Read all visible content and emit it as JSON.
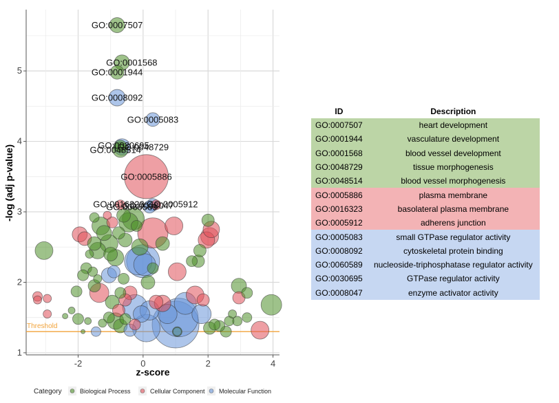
{
  "colors": {
    "Biological Process": "#4e8f2a",
    "Cellular Component": "#e0505a",
    "Molecular Function": "#6a96d8",
    "threshold": "#f2a33a",
    "row_bp": "#bcd5a6",
    "row_cc": "#f3b3b5",
    "row_mf": "#c6d7f2"
  },
  "chart_data": {
    "type": "scatter",
    "xlabel": "z-score",
    "ylabel": "-log (adj p-value)",
    "xlim": [
      -3.6,
      4.2
    ],
    "ylim": [
      0.97,
      5.87
    ],
    "xticks": [
      -2,
      0,
      2,
      4
    ],
    "yticks": [
      1,
      2,
      3,
      4,
      5
    ],
    "grid": true,
    "threshold": {
      "y": 1.3,
      "label": "Threshold"
    },
    "legend": {
      "title": "Category",
      "position": "bottom",
      "entries": [
        "Biological Process",
        "Cellular Component",
        "Molecular Function"
      ]
    },
    "labeled_points": [
      {
        "id": "GO:0007507",
        "x": -0.8,
        "y": 5.65,
        "r": 11,
        "category": "Biological Process"
      },
      {
        "id": "GO:0001568",
        "x": -0.65,
        "y": 5.12,
        "r": 11,
        "category": "Biological Process"
      },
      {
        "id": "GO:0001944",
        "x": -0.8,
        "y": 4.98,
        "r": 10,
        "category": "Biological Process"
      },
      {
        "id": "GO:0008092",
        "x": -0.8,
        "y": 4.62,
        "r": 12,
        "category": "Molecular Function"
      },
      {
        "id": "GO:0005083",
        "x": 0.3,
        "y": 4.31,
        "r": 10,
        "category": "Molecular Function"
      },
      {
        "id": "GO:0030695",
        "x": -0.65,
        "y": 3.92,
        "r": 12,
        "category": "Molecular Function"
      },
      {
        "id": "GO:0048729",
        "x": -0.7,
        "y": 3.93,
        "r": 9,
        "category": "Biological Process"
      },
      {
        "id": "GO:0048514",
        "x": -0.7,
        "y": 3.88,
        "r": 11,
        "category": "Biological Process"
      },
      {
        "id": "GO:0005886",
        "x": 0.1,
        "y": 3.5,
        "r": 32,
        "category": "Cellular Component"
      },
      {
        "id": "GO:0016323",
        "x": -0.7,
        "y": 3.1,
        "r": 7,
        "category": "Cellular Component"
      },
      {
        "id": "GO:0060589",
        "x": 0.3,
        "y": 3.1,
        "r": 9,
        "category": "Molecular Function"
      },
      {
        "id": "GO:0005912",
        "x": 0.4,
        "y": 3.1,
        "r": 7,
        "category": "Cellular Component"
      },
      {
        "id": "GO:0008047",
        "x": 0.2,
        "y": 3.07,
        "r": 9,
        "category": "Molecular Function"
      }
    ],
    "label_layout": [
      {
        "text": "GO:0007507",
        "x": -0.8,
        "y": 5.65
      },
      {
        "text": "GO:0001568",
        "x": -0.35,
        "y": 5.12
      },
      {
        "text": "GO:0001944",
        "x": -0.8,
        "y": 4.98
      },
      {
        "text": "GO:0008092",
        "x": -0.8,
        "y": 4.62
      },
      {
        "text": "GO:0005083",
        "x": 0.3,
        "y": 4.31
      },
      {
        "text": "GO:0030695",
        "x": -0.6,
        "y": 3.94
      },
      {
        "text": "GO:0048729",
        "x": 0.0,
        "y": 3.92
      },
      {
        "text": "GO:0048514",
        "x": -0.85,
        "y": 3.88
      },
      {
        "text": "GO:0005886",
        "x": 0.1,
        "y": 3.5
      },
      {
        "text": "GO:0016323",
        "x": -0.75,
        "y": 3.11
      },
      {
        "text": "GO:0060589",
        "x": -0.35,
        "y": 3.07
      },
      {
        "text": "GO:0005912",
        "x": 0.9,
        "y": 3.11
      },
      {
        "text": "GO:0008047",
        "x": 0.15,
        "y": 3.09
      }
    ],
    "points": [
      {
        "x": -3.05,
        "y": 2.45,
        "r": 13,
        "category": "Biological Process"
      },
      {
        "x": -3.25,
        "y": 1.8,
        "r": 7,
        "category": "Cellular Component"
      },
      {
        "x": -3.25,
        "y": 1.75,
        "r": 6,
        "category": "Cellular Component"
      },
      {
        "x": -2.95,
        "y": 1.77,
        "r": 6,
        "category": "Cellular Component"
      },
      {
        "x": -2.95,
        "y": 1.55,
        "r": 6,
        "category": "Cellular Component"
      },
      {
        "x": -2.4,
        "y": 1.52,
        "r": 4,
        "category": "Biological Process"
      },
      {
        "x": -2.0,
        "y": 1.48,
        "r": 8,
        "category": "Biological Process"
      },
      {
        "x": -2.05,
        "y": 1.87,
        "r": 8,
        "category": "Biological Process"
      },
      {
        "x": -1.95,
        "y": 2.68,
        "r": 11,
        "category": "Cellular Component"
      },
      {
        "x": -1.8,
        "y": 2.62,
        "r": 10,
        "category": "Cellular Component"
      },
      {
        "x": -1.85,
        "y": 1.3,
        "r": 3,
        "category": "Biological Process"
      },
      {
        "x": -1.65,
        "y": 2.4,
        "r": 6,
        "category": "Biological Process"
      },
      {
        "x": -1.75,
        "y": 2.2,
        "r": 8,
        "category": "Biological Process"
      },
      {
        "x": -1.85,
        "y": 2.1,
        "r": 8,
        "category": "Biological Process"
      },
      {
        "x": -1.55,
        "y": 2.15,
        "r": 7,
        "category": "Biological Process"
      },
      {
        "x": -1.5,
        "y": 1.95,
        "r": 9,
        "category": "Biological Process"
      },
      {
        "x": -1.4,
        "y": 2.05,
        "r": 6,
        "category": "Biological Process"
      },
      {
        "x": -1.35,
        "y": 1.85,
        "r": 14,
        "category": "Cellular Component"
      },
      {
        "x": -1.5,
        "y": 2.55,
        "r": 10,
        "category": "Biological Process"
      },
      {
        "x": -1.4,
        "y": 2.45,
        "r": 12,
        "category": "Biological Process"
      },
      {
        "x": -1.3,
        "y": 2.8,
        "r": 13,
        "category": "Biological Process"
      },
      {
        "x": -1.2,
        "y": 2.7,
        "r": 11,
        "category": "Biological Process"
      },
      {
        "x": -1.05,
        "y": 2.55,
        "r": 13,
        "category": "Biological Process"
      },
      {
        "x": -1.0,
        "y": 2.4,
        "r": 10,
        "category": "Biological Process"
      },
      {
        "x": -0.85,
        "y": 2.35,
        "r": 12,
        "category": "Biological Process"
      },
      {
        "x": -0.9,
        "y": 2.15,
        "r": 9,
        "category": "Molecular Function"
      },
      {
        "x": -1.05,
        "y": 2.1,
        "r": 11,
        "category": "Molecular Function"
      },
      {
        "x": -0.6,
        "y": 2.05,
        "r": 8,
        "category": "Biological Process"
      },
      {
        "x": -0.75,
        "y": 2.7,
        "r": 9,
        "category": "Biological Process"
      },
      {
        "x": -0.55,
        "y": 2.6,
        "r": 10,
        "category": "Biological Process"
      },
      {
        "x": -0.45,
        "y": 2.85,
        "r": 14,
        "category": "Biological Process"
      },
      {
        "x": -0.3,
        "y": 2.9,
        "r": 16,
        "category": "Biological Process"
      },
      {
        "x": -0.6,
        "y": 2.95,
        "r": 10,
        "category": "Biological Process"
      },
      {
        "x": -0.95,
        "y": 2.85,
        "r": 8,
        "category": "Cellular Component"
      },
      {
        "x": -1.5,
        "y": 2.92,
        "r": 7,
        "category": "Biological Process"
      },
      {
        "x": -1.1,
        "y": 2.95,
        "r": 6,
        "category": "Cellular Component"
      },
      {
        "x": -0.2,
        "y": 2.8,
        "r": 8,
        "category": "Biological Process"
      },
      {
        "x": 0.3,
        "y": 2.7,
        "r": 22,
        "category": "Cellular Component"
      },
      {
        "x": -0.1,
        "y": 2.5,
        "r": 12,
        "category": "Biological Process"
      },
      {
        "x": 0.6,
        "y": 2.55,
        "r": 10,
        "category": "Biological Process"
      },
      {
        "x": 0.3,
        "y": 2.2,
        "r": 8,
        "category": "Biological Process"
      },
      {
        "x": 0.15,
        "y": 2.0,
        "r": 10,
        "category": "Biological Process"
      },
      {
        "x": 0.0,
        "y": 2.3,
        "r": 24,
        "category": "Molecular Function"
      },
      {
        "x": -0.15,
        "y": 2.3,
        "r": 20,
        "category": "Molecular Function"
      },
      {
        "x": 0.05,
        "y": 2.25,
        "r": 16,
        "category": "Molecular Function"
      },
      {
        "x": 0.95,
        "y": 2.8,
        "r": 13,
        "category": "Cellular Component"
      },
      {
        "x": 1.05,
        "y": 2.15,
        "r": 13,
        "category": "Cellular Component"
      },
      {
        "x": 1.5,
        "y": 2.3,
        "r": 8,
        "category": "Biological Process"
      },
      {
        "x": 1.7,
        "y": 2.3,
        "r": 9,
        "category": "Biological Process"
      },
      {
        "x": 1.75,
        "y": 2.45,
        "r": 9,
        "category": "Biological Process"
      },
      {
        "x": 1.95,
        "y": 2.6,
        "r": 12,
        "category": "Cellular Component"
      },
      {
        "x": 2.05,
        "y": 2.65,
        "r": 13,
        "category": "Cellular Component"
      },
      {
        "x": 2.1,
        "y": 2.75,
        "r": 12,
        "category": "Cellular Component"
      },
      {
        "x": 2.0,
        "y": 2.88,
        "r": 9,
        "category": "Biological Process"
      },
      {
        "x": 2.95,
        "y": 1.95,
        "r": 11,
        "category": "Biological Process"
      },
      {
        "x": 3.2,
        "y": 1.85,
        "r": 8,
        "category": "Biological Process"
      },
      {
        "x": 2.95,
        "y": 1.78,
        "r": 9,
        "category": "Cellular Component"
      },
      {
        "x": 3.95,
        "y": 1.68,
        "r": 15,
        "category": "Biological Process"
      },
      {
        "x": 3.6,
        "y": 1.32,
        "r": 13,
        "category": "Cellular Component"
      },
      {
        "x": 3.2,
        "y": 1.5,
        "r": 7,
        "category": "Biological Process"
      },
      {
        "x": 2.9,
        "y": 1.45,
        "r": 7,
        "category": "Biological Process"
      },
      {
        "x": 2.75,
        "y": 1.55,
        "r": 6,
        "category": "Biological Process"
      },
      {
        "x": 2.65,
        "y": 1.45,
        "r": 7,
        "category": "Biological Process"
      },
      {
        "x": 2.55,
        "y": 1.3,
        "r": 8,
        "category": "Biological Process"
      },
      {
        "x": 2.35,
        "y": 1.38,
        "r": 8,
        "category": "Biological Process"
      },
      {
        "x": 2.2,
        "y": 1.4,
        "r": 8,
        "category": "Biological Process"
      },
      {
        "x": 2.05,
        "y": 1.35,
        "r": 9,
        "category": "Biological Process"
      },
      {
        "x": 1.8,
        "y": 1.55,
        "r": 14,
        "category": "Molecular Function"
      },
      {
        "x": 1.85,
        "y": 1.75,
        "r": 9,
        "category": "Cellular Component"
      },
      {
        "x": 1.6,
        "y": 1.82,
        "r": 13,
        "category": "Cellular Component"
      },
      {
        "x": 1.3,
        "y": 1.7,
        "r": 16,
        "category": "Molecular Function"
      },
      {
        "x": 1.1,
        "y": 1.5,
        "r": 28,
        "category": "Molecular Function"
      },
      {
        "x": 1.0,
        "y": 1.4,
        "r": 34,
        "category": "Molecular Function"
      },
      {
        "x": 1.05,
        "y": 1.3,
        "r": 7,
        "category": "Biological Process"
      },
      {
        "x": 0.75,
        "y": 1.55,
        "r": 14,
        "category": "Molecular Function"
      },
      {
        "x": 0.6,
        "y": 1.7,
        "r": 12,
        "category": "Cellular Component"
      },
      {
        "x": 0.4,
        "y": 1.72,
        "r": 10,
        "category": "Cellular Component"
      },
      {
        "x": 0.2,
        "y": 1.6,
        "r": 14,
        "category": "Molecular Function"
      },
      {
        "x": 0.1,
        "y": 1.35,
        "r": 20,
        "category": "Molecular Function"
      },
      {
        "x": -0.05,
        "y": 1.55,
        "r": 12,
        "category": "Molecular Function"
      },
      {
        "x": -0.25,
        "y": 1.65,
        "r": 18,
        "category": "Molecular Function"
      },
      {
        "x": -0.4,
        "y": 1.85,
        "r": 10,
        "category": "Cellular Component"
      },
      {
        "x": -0.55,
        "y": 1.75,
        "r": 9,
        "category": "Cellular Component"
      },
      {
        "x": -0.7,
        "y": 1.85,
        "r": 8,
        "category": "Biological Process"
      },
      {
        "x": -0.75,
        "y": 1.6,
        "r": 9,
        "category": "Cellular Component"
      },
      {
        "x": -0.95,
        "y": 1.72,
        "r": 10,
        "category": "Biological Process"
      },
      {
        "x": -1.05,
        "y": 1.5,
        "r": 8,
        "category": "Biological Process"
      },
      {
        "x": -0.85,
        "y": 1.45,
        "r": 12,
        "category": "Biological Process"
      },
      {
        "x": -0.7,
        "y": 1.38,
        "r": 10,
        "category": "Biological Process"
      },
      {
        "x": -0.55,
        "y": 1.48,
        "r": 8,
        "category": "Biological Process"
      },
      {
        "x": -0.4,
        "y": 1.32,
        "r": 9,
        "category": "Molecular Function"
      },
      {
        "x": -0.25,
        "y": 1.4,
        "r": 8,
        "category": "Cellular Component"
      },
      {
        "x": -1.45,
        "y": 1.3,
        "r": 7,
        "category": "Molecular Function"
      },
      {
        "x": -1.25,
        "y": 1.42,
        "r": 6,
        "category": "Biological Process"
      },
      {
        "x": -1.7,
        "y": 1.45,
        "r": 5,
        "category": "Biological Process"
      },
      {
        "x": -2.2,
        "y": 1.6,
        "r": 5,
        "category": "Biological Process"
      },
      {
        "x": 1.05,
        "y": 1.3,
        "r": 6,
        "category": "Molecular Function"
      }
    ]
  },
  "table": {
    "headers": [
      "ID",
      "Description"
    ],
    "rows": [
      {
        "id": "GO:0007507",
        "desc": "heart development",
        "cat": "bp"
      },
      {
        "id": "GO:0001944",
        "desc": "vasculature development",
        "cat": "bp"
      },
      {
        "id": "GO:0001568",
        "desc": "blood vessel development",
        "cat": "bp"
      },
      {
        "id": "GO:0048729",
        "desc": "tissue morphogenesis",
        "cat": "bp"
      },
      {
        "id": "GO:0048514",
        "desc": "blood vessel morphogenesis",
        "cat": "bp"
      },
      {
        "id": "GO:0005886",
        "desc": "plasma membrane",
        "cat": "cc"
      },
      {
        "id": "GO:0016323",
        "desc": "basolateral plasma membrane",
        "cat": "cc"
      },
      {
        "id": "GO:0005912",
        "desc": "adherens junction",
        "cat": "cc"
      },
      {
        "id": "GO:0005083",
        "desc": "small GTPase regulator activity",
        "cat": "mf"
      },
      {
        "id": "GO:0008092",
        "desc": "cytoskeletal protein binding",
        "cat": "mf"
      },
      {
        "id": "GO:0060589",
        "desc": "nucleoside-triphosphatase regulator activity",
        "cat": "mf"
      },
      {
        "id": "GO:0030695",
        "desc": "GTPase regulator activity",
        "cat": "mf"
      },
      {
        "id": "GO:0008047",
        "desc": "enzyme activator activity",
        "cat": "mf"
      }
    ]
  }
}
